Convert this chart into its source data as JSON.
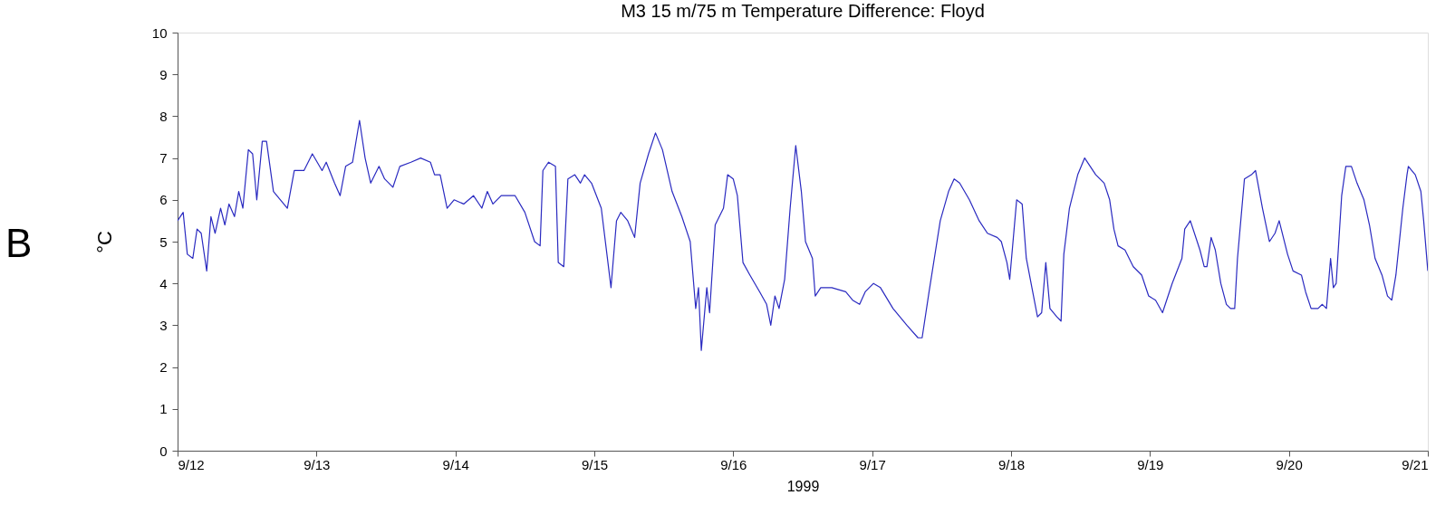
{
  "chart_data": {
    "type": "line",
    "title": "M3 15 m/75 m Temperature Difference: Floyd",
    "xlabel": "1999",
    "ylabel": "°C",
    "annotations": [
      "B"
    ],
    "xlim": [
      "1999-09-12",
      "1999-09-21"
    ],
    "ylim": [
      0,
      10
    ],
    "xticks": [
      {
        "value": "1999-09-12",
        "label": "9/12"
      },
      {
        "value": "1999-09-13",
        "label": "9/13"
      },
      {
        "value": "1999-09-14",
        "label": "9/14"
      },
      {
        "value": "1999-09-15",
        "label": "9/15"
      },
      {
        "value": "1999-09-16",
        "label": "9/16"
      },
      {
        "value": "1999-09-17",
        "label": "9/17"
      },
      {
        "value": "1999-09-18",
        "label": "9/18"
      },
      {
        "value": "1999-09-19",
        "label": "9/19"
      },
      {
        "value": "1999-09-20",
        "label": "9/20"
      },
      {
        "value": "1999-09-21",
        "label": "9/21"
      }
    ],
    "yticks": [
      0,
      1,
      2,
      3,
      4,
      5,
      6,
      7,
      8,
      9,
      10
    ],
    "grid": false,
    "line_style": "solid",
    "series": [
      {
        "color": "#2a2ac0",
        "x": [
          "1999-09-12T00:00",
          "1999-09-12T00:58",
          "1999-09-12T01:41",
          "1999-09-12T02:38",
          "1999-09-12T03:22",
          "1999-09-12T04:05",
          "1999-09-12T05:02",
          "1999-09-12T05:46",
          "1999-09-12T06:29",
          "1999-09-12T07:26",
          "1999-09-12T08:10",
          "1999-09-12T08:53",
          "1999-09-12T09:50",
          "1999-09-12T10:34",
          "1999-09-12T11:17",
          "1999-09-12T12:14",
          "1999-09-12T12:58",
          "1999-09-12T13:41",
          "1999-09-12T14:38",
          "1999-09-12T15:22",
          "1999-09-12T16:34",
          "1999-09-12T17:46",
          "1999-09-12T18:58",
          "1999-09-12T20:10",
          "1999-09-12T21:50",
          "1999-09-12T23:17",
          "1999-09-13T00:58",
          "1999-09-13T01:41",
          "1999-09-13T03:07",
          "1999-09-13T04:05",
          "1999-09-13T05:02",
          "1999-09-13T06:14",
          "1999-09-13T07:26",
          "1999-09-13T08:24",
          "1999-09-13T09:22",
          "1999-09-13T10:48",
          "1999-09-13T11:46",
          "1999-09-13T13:12",
          "1999-09-13T14:24",
          "1999-09-13T16:19",
          "1999-09-13T18:00",
          "1999-09-13T19:41",
          "1999-09-13T20:24",
          "1999-09-13T21:22",
          "1999-09-13T22:34",
          "1999-09-13T23:46",
          "1999-09-14T01:26",
          "1999-09-14T03:07",
          "1999-09-14T04:34",
          "1999-09-14T05:31",
          "1999-09-14T06:29",
          "1999-09-14T07:55",
          "1999-09-14T10:19",
          "1999-09-14T12:00",
          "1999-09-14T13:41",
          "1999-09-14T14:38",
          "1999-09-14T15:07",
          "1999-09-14T16:05",
          "1999-09-14T17:17",
          "1999-09-14T17:46",
          "1999-09-14T18:43",
          "1999-09-14T19:26",
          "1999-09-14T20:38",
          "1999-09-14T21:36",
          "1999-09-14T22:19",
          "1999-09-14T23:31",
          "1999-09-15T01:12",
          "1999-09-15T02:53",
          "1999-09-15T03:50",
          "1999-09-15T04:34",
          "1999-09-15T05:46",
          "1999-09-15T06:58",
          "1999-09-15T07:55",
          "1999-09-15T09:22",
          "1999-09-15T10:34",
          "1999-09-15T11:46",
          "1999-09-15T13:26",
          "1999-09-15T15:07",
          "1999-09-15T16:34",
          "1999-09-15T17:31",
          "1999-09-15T18:00",
          "1999-09-15T18:29",
          "1999-09-15T19:26",
          "1999-09-15T19:55",
          "1999-09-15T20:53",
          "1999-09-15T22:19",
          "1999-09-15T23:02",
          "1999-09-16T00:00",
          "1999-09-16T00:43",
          "1999-09-16T01:41",
          "1999-09-16T02:53",
          "1999-09-16T04:34",
          "1999-09-16T05:46",
          "1999-09-16T06:29",
          "1999-09-16T07:12",
          "1999-09-16T07:55",
          "1999-09-16T08:53",
          "1999-09-16T09:50",
          "1999-09-16T10:48",
          "1999-09-16T11:46",
          "1999-09-16T12:29",
          "1999-09-16T13:41",
          "1999-09-16T14:10",
          "1999-09-16T15:07",
          "1999-09-16T17:02",
          "1999-09-16T19:26",
          "1999-09-16T20:38",
          "1999-09-16T21:50",
          "1999-09-16T22:48",
          "1999-09-17T00:14",
          "1999-09-17T01:26",
          "1999-09-17T03:36",
          "1999-09-17T06:00",
          "1999-09-17T07:55",
          "1999-09-17T08:38",
          "1999-09-17T09:50",
          "1999-09-17T11:46",
          "1999-09-17T13:12",
          "1999-09-17T14:10",
          "1999-09-17T15:07",
          "1999-09-17T16:48",
          "1999-09-17T18:29",
          "1999-09-17T19:55",
          "1999-09-17T21:36",
          "1999-09-17T22:19",
          "1999-09-17T23:17",
          "1999-09-17T23:46",
          "1999-09-18T00:58",
          "1999-09-18T01:55",
          "1999-09-18T02:38",
          "1999-09-18T03:36",
          "1999-09-18T04:34",
          "1999-09-18T05:17",
          "1999-09-18T06:00",
          "1999-09-18T06:43",
          "1999-09-18T07:55",
          "1999-09-18T08:38",
          "1999-09-18T09:07",
          "1999-09-18T10:05",
          "1999-09-18T11:31",
          "1999-09-18T12:43",
          "1999-09-18T14:38",
          "1999-09-18T16:05",
          "1999-09-18T17:02",
          "1999-09-18T17:46",
          "1999-09-18T18:29",
          "1999-09-18T19:41",
          "1999-09-18T21:07",
          "1999-09-18T22:34",
          "1999-09-18T23:46",
          "1999-09-19T00:58",
          "1999-09-19T02:10",
          "1999-09-19T03:50",
          "1999-09-19T05:31",
          "1999-09-19T06:00",
          "1999-09-19T06:58",
          "1999-09-19T08:38",
          "1999-09-19T09:22",
          "1999-09-19T09:50",
          "1999-09-19T10:34",
          "1999-09-19T11:17",
          "1999-09-19T12:14",
          "1999-09-19T13:12",
          "1999-09-19T13:55",
          "1999-09-19T14:38",
          "1999-09-19T15:07",
          "1999-09-19T16:19",
          "1999-09-19T17:31",
          "1999-09-19T18:14",
          "1999-09-19T19:26",
          "1999-09-19T20:38",
          "1999-09-19T21:36",
          "1999-09-19T22:19",
          "1999-09-19T23:46",
          "1999-09-20T00:43",
          "1999-09-20T02:10",
          "1999-09-20T02:53",
          "1999-09-20T03:50",
          "1999-09-20T05:02",
          "1999-09-20T05:46",
          "1999-09-20T06:29",
          "1999-09-20T07:12",
          "1999-09-20T07:41",
          "1999-09-20T08:10",
          "1999-09-20T09:07",
          "1999-09-20T09:50",
          "1999-09-20T10:48",
          "1999-09-20T11:46",
          "1999-09-20T12:58",
          "1999-09-20T13:55",
          "1999-09-20T14:53",
          "1999-09-20T16:05",
          "1999-09-20T17:02",
          "1999-09-20T17:46",
          "1999-09-20T18:29",
          "1999-09-20T19:41",
          "1999-09-20T20:24",
          "1999-09-20T20:38",
          "1999-09-20T21:50",
          "1999-09-20T22:48",
          "1999-09-20T23:17",
          "1999-09-21T00:00"
        ],
        "values": [
          5.5,
          5.7,
          4.7,
          4.6,
          5.3,
          5.2,
          4.3,
          5.6,
          5.2,
          5.8,
          5.4,
          5.9,
          5.6,
          6.2,
          5.8,
          7.2,
          7.1,
          6.0,
          7.4,
          7.4,
          6.2,
          6.0,
          5.8,
          6.7,
          6.7,
          7.1,
          6.7,
          6.9,
          6.4,
          6.1,
          6.8,
          6.9,
          7.9,
          7.0,
          6.4,
          6.8,
          6.5,
          6.3,
          6.8,
          6.9,
          7.0,
          6.9,
          6.6,
          6.6,
          5.8,
          6.0,
          5.9,
          6.1,
          5.8,
          6.2,
          5.9,
          6.1,
          6.1,
          5.7,
          5.0,
          4.9,
          6.7,
          6.9,
          6.8,
          4.5,
          4.4,
          6.5,
          6.6,
          6.4,
          6.6,
          6.4,
          5.8,
          3.9,
          5.5,
          5.7,
          5.5,
          5.1,
          6.4,
          7.1,
          7.6,
          7.2,
          6.2,
          5.6,
          5.0,
          3.4,
          3.9,
          2.4,
          3.9,
          3.3,
          5.4,
          5.8,
          6.6,
          6.5,
          6.1,
          4.5,
          4.2,
          3.8,
          3.5,
          3.0,
          3.7,
          3.4,
          4.1,
          5.8,
          7.3,
          6.2,
          5.0,
          4.6,
          3.7,
          3.9,
          3.9,
          3.8,
          3.6,
          3.5,
          3.8,
          4.0,
          3.9,
          3.4,
          3.0,
          2.7,
          2.7,
          3.8,
          5.5,
          6.2,
          6.5,
          6.4,
          6.0,
          5.5,
          5.2,
          5.1,
          5.0,
          4.5,
          4.1,
          6.0,
          5.9,
          4.6,
          3.9,
          3.2,
          3.3,
          4.5,
          3.4,
          3.2,
          3.1,
          4.7,
          5.8,
          6.6,
          7.0,
          6.6,
          6.4,
          6.0,
          5.3,
          4.9,
          4.8,
          4.4,
          4.2,
          3.7,
          3.6,
          3.3,
          4.0,
          4.6,
          5.3,
          5.5,
          4.8,
          4.4,
          4.4,
          5.1,
          4.8,
          4.0,
          3.5,
          3.4,
          3.4,
          4.6,
          6.5,
          6.6,
          6.7,
          5.8,
          5.0,
          5.2,
          5.5,
          4.7,
          4.3,
          4.2,
          3.8,
          3.4,
          3.4,
          3.5,
          3.4,
          4.6,
          3.9,
          4.0,
          6.1,
          6.8,
          6.8,
          6.4,
          6.0,
          5.4,
          4.6,
          4.2,
          3.7,
          3.6,
          4.2,
          5.8,
          6.6,
          6.8,
          6.6,
          6.2,
          5.5,
          4.3
        ]
      }
    ]
  }
}
